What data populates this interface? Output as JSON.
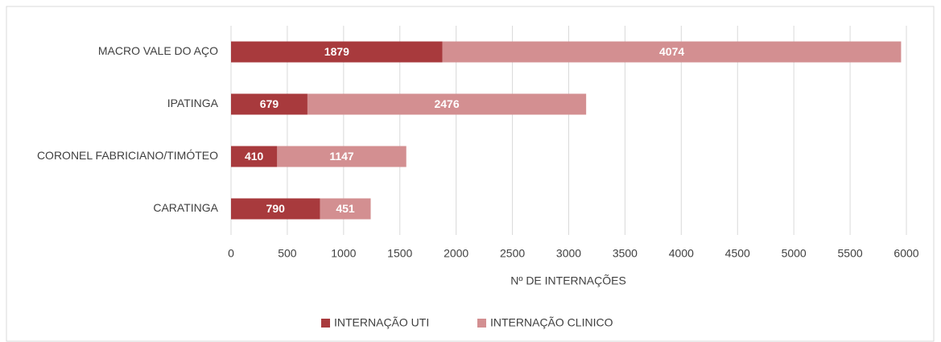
{
  "chart_data": {
    "type": "stacked_bar_horizontal",
    "categories": [
      "MACRO VALE DO AÇO",
      "IPATINGA",
      "CORONEL FABRICIANO/TIMÓTEO",
      "CARATINGA"
    ],
    "series": [
      {
        "name": "INTERNAÇÃO UTI",
        "color": "#a83a3d",
        "values": [
          1879,
          679,
          410,
          790
        ]
      },
      {
        "name": "INTERNAÇÃO CLINICO",
        "color": "#d38f91",
        "values": [
          4074,
          2476,
          1147,
          451
        ]
      }
    ],
    "x_label": "Nº DE INTERNAÇÕES",
    "xlim": [
      0,
      6000
    ],
    "xticks": [
      0,
      500,
      1000,
      1500,
      2000,
      2500,
      3000,
      3500,
      4000,
      4500,
      5000,
      5500,
      6000
    ],
    "grid": true,
    "legend": "bottom"
  }
}
